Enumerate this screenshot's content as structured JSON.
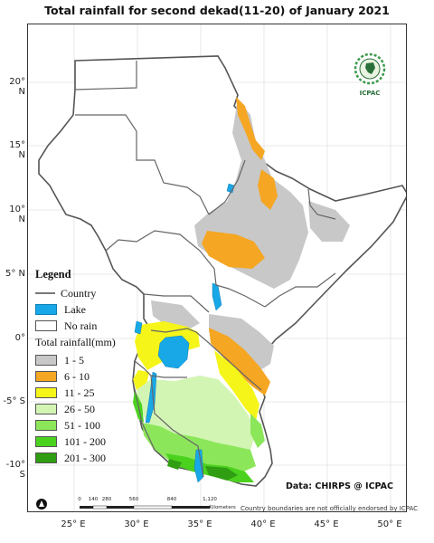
{
  "title": "Total rainfall for  second  dekad(11-20)  of January 2021",
  "lat_ticks": [
    "20° N",
    "15° N",
    "10° N",
    "5° N",
    "0°",
    "-5° S",
    "-10° S"
  ],
  "lon_ticks": [
    "25° E",
    "30° E",
    "35° E",
    "40° E",
    "45° E",
    "50° E"
  ],
  "legend": {
    "title": "Legend",
    "country_label": "Country",
    "lake_label": "Lake",
    "norain_label": "No rain",
    "rain_title": "Total rainfall(mm)",
    "classes": [
      {
        "label": "1 - 5",
        "color": "#c8c8c8"
      },
      {
        "label": "6 - 10",
        "color": "#f5a623"
      },
      {
        "label": "11 - 25",
        "color": "#f5f51a"
      },
      {
        "label": "26 - 50",
        "color": "#d2f5b4"
      },
      {
        "label": "51 - 100",
        "color": "#8ce65a"
      },
      {
        "label": "101 - 200",
        "color": "#4bd21e"
      },
      {
        "label": "201 - 300",
        "color": "#2f9e12"
      }
    ],
    "lake_color": "#18a8e8"
  },
  "logo": {
    "top_text": "IGAD",
    "bottom_text": "ICPAC"
  },
  "credit": "Data: CHIRPS @ ICPAC",
  "disclaimer": "Country boundaries are not officially endorsed by ICPAC",
  "scale": {
    "labels": [
      "0",
      "140",
      "280",
      "560",
      "840",
      "1,120"
    ],
    "unit": "Kilometers"
  }
}
